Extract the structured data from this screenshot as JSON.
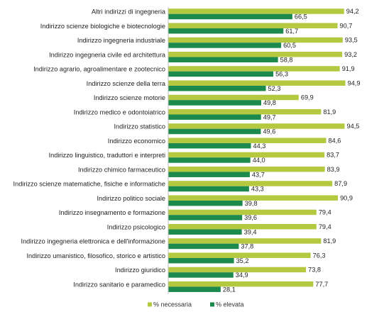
{
  "chart_data": {
    "type": "bar",
    "orientation": "horizontal",
    "categories": [
      "Altri indirizzi di ingegneria",
      "Indirizzo scienze biologiche e biotecnologie",
      "Indirizzo ingegneria industriale",
      "Indirizzo ingegneria civile ed architettura",
      "Indirizzo agrario, agroalimentare e zootecnico",
      "Indirizzo scienze della terra",
      "Indirizzo scienze motorie",
      "Indirizzo medico e odontoiatrico",
      "Indirizzo statistico",
      "Indirizzo economico",
      "Indirizzo linguistico, traduttori e interpreti",
      "Indirizzo chimico farmaceutico",
      "Indirizzo scienze matematiche, fisiche e informatiche",
      "Indirizzo politico sociale",
      "Indirizzo insegnamento e formazione",
      "Indirizzo psicologico",
      "Indirizzo ingegneria elettronica e dell'informazione",
      "Indirizzo umanistico, filosofico, storico e artistico",
      "Indirizzo giuridico",
      "Indirizzo sanitario e paramedico"
    ],
    "series": [
      {
        "name": "% necessaria",
        "color": "#b5c940",
        "values": [
          94.2,
          90.7,
          93.5,
          93.2,
          91.9,
          94.9,
          69.9,
          81.9,
          94.5,
          84.6,
          83.7,
          83.9,
          87.9,
          90.9,
          79.4,
          79.4,
          81.9,
          76.3,
          73.8,
          77.7
        ],
        "labels": [
          "94,2",
          "90,7",
          "93,5",
          "93,2",
          "91,9",
          "94,9",
          "69,9",
          "81,9",
          "94,5",
          "84,6",
          "83,7",
          "83,9",
          "87,9",
          "90,9",
          "79,4",
          "79,4",
          "81,9",
          "76,3",
          "73,8",
          "77,7"
        ]
      },
      {
        "name": "% elevata",
        "color": "#1b8a4c",
        "values": [
          66.5,
          61.7,
          60.5,
          58.8,
          56.3,
          52.3,
          49.8,
          49.7,
          49.6,
          44.3,
          44.0,
          43.7,
          43.3,
          39.8,
          39.6,
          39.4,
          37.8,
          35.2,
          34.9,
          28.1
        ],
        "labels": [
          "66,5",
          "61,7",
          "60,5",
          "58,8",
          "56,3",
          "52,3",
          "49,8",
          "49,7",
          "49,6",
          "44,3",
          "44,0",
          "43,7",
          "43,3",
          "39,8",
          "39,6",
          "39,4",
          "37,8",
          "35,2",
          "34,9",
          "28,1"
        ]
      }
    ],
    "xlim": [
      0,
      100
    ],
    "grid": false,
    "legend": "bottom"
  }
}
